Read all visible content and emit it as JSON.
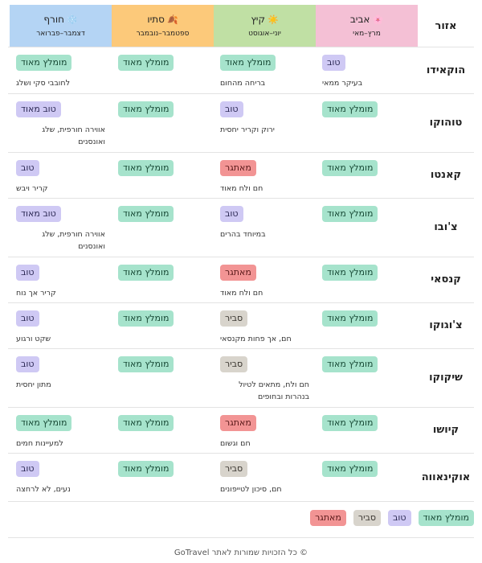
{
  "header": {
    "region_label": "אזור",
    "seasons": [
      {
        "key": "spring",
        "name": "אביב",
        "emoji": "🌸",
        "months": "מרץ–מאי"
      },
      {
        "key": "summer",
        "name": "קיץ",
        "emoji": "☀️",
        "months": "יוני–אוגוסט"
      },
      {
        "key": "autumn",
        "name": "סתיו",
        "emoji": "🍂",
        "months": "ספטמבר–נובמבר"
      },
      {
        "key": "winter",
        "name": "חורף",
        "emoji": "❄️",
        "months": "דצמבר–פברואר"
      }
    ]
  },
  "rows": [
    {
      "region": "הוקאידו",
      "cells": [
        {
          "badge": "טוב",
          "kind": "good",
          "note": "בעיקר ממאי"
        },
        {
          "badge": "מומלץ מאוד",
          "kind": "rec",
          "note": "בריחה מהחום"
        },
        {
          "badge": "מומלץ מאוד",
          "kind": "rec",
          "note": ""
        },
        {
          "badge": "מומלץ מאוד",
          "kind": "rec",
          "note": "לחובבי סקי ושלג"
        }
      ]
    },
    {
      "region": "טוהוקו",
      "cells": [
        {
          "badge": "מומלץ מאוד",
          "kind": "rec",
          "note": ""
        },
        {
          "badge": "טוב",
          "kind": "good",
          "note": "ירוק וקריר יחסית"
        },
        {
          "badge": "מומלץ מאוד",
          "kind": "rec",
          "note": ""
        },
        {
          "badge": "טוב מאוד",
          "kind": "good",
          "note": "אווירה חורפית, שלג ואונסנים"
        }
      ]
    },
    {
      "region": "קאנטו",
      "cells": [
        {
          "badge": "מומלץ מאוד",
          "kind": "rec",
          "note": ""
        },
        {
          "badge": "מאתגר",
          "kind": "hard",
          "note": "חם ולח מאוד"
        },
        {
          "badge": "מומלץ מאוד",
          "kind": "rec",
          "note": ""
        },
        {
          "badge": "טוב",
          "kind": "good",
          "note": "קריר ויבש"
        }
      ]
    },
    {
      "region": "צ'ובו",
      "cells": [
        {
          "badge": "מומלץ מאוד",
          "kind": "rec",
          "note": ""
        },
        {
          "badge": "טוב",
          "kind": "good",
          "note": "במיוחד בהרים"
        },
        {
          "badge": "מומלץ מאוד",
          "kind": "rec",
          "note": ""
        },
        {
          "badge": "טוב מאוד",
          "kind": "good",
          "note": "אווירה חורפית, שלג ואונסנים"
        }
      ]
    },
    {
      "region": "קנסאי",
      "cells": [
        {
          "badge": "מומלץ מאוד",
          "kind": "rec",
          "note": ""
        },
        {
          "badge": "מאתגר",
          "kind": "hard",
          "note": "חם ולח מאוד"
        },
        {
          "badge": "מומלץ מאוד",
          "kind": "rec",
          "note": ""
        },
        {
          "badge": "טוב",
          "kind": "good",
          "note": "קריר אך נוח"
        }
      ]
    },
    {
      "region": "צ'וגוקו",
      "cells": [
        {
          "badge": "מומלץ מאוד",
          "kind": "rec",
          "note": ""
        },
        {
          "badge": "סביר",
          "kind": "ok",
          "note": "חם, אך פחות מקנסאי"
        },
        {
          "badge": "מומלץ מאוד",
          "kind": "rec",
          "note": ""
        },
        {
          "badge": "טוב",
          "kind": "good",
          "note": "שקט ורגוע"
        }
      ]
    },
    {
      "region": "שיקוקו",
      "cells": [
        {
          "badge": "מומלץ מאוד",
          "kind": "rec",
          "note": ""
        },
        {
          "badge": "סביר",
          "kind": "ok",
          "note": "חם ולח, מתאים לטיול בנהרות ובחופים"
        },
        {
          "badge": "מומלץ מאוד",
          "kind": "rec",
          "note": ""
        },
        {
          "badge": "טוב",
          "kind": "good",
          "note": "מתון יחסית"
        }
      ]
    },
    {
      "region": "קיושו",
      "cells": [
        {
          "badge": "מומלץ מאוד",
          "kind": "rec",
          "note": ""
        },
        {
          "badge": "מאתגר",
          "kind": "hard",
          "note": "חם וגשום"
        },
        {
          "badge": "מומלץ מאוד",
          "kind": "rec",
          "note": ""
        },
        {
          "badge": "מומלץ מאוד",
          "kind": "rec",
          "note": "למעיינות חמים"
        }
      ]
    },
    {
      "region": "אוקינאווה",
      "cells": [
        {
          "badge": "מומלץ מאוד",
          "kind": "rec",
          "note": ""
        },
        {
          "badge": "סביר",
          "kind": "ok",
          "note": "חם, סיכון לטייפונים"
        },
        {
          "badge": "מומלץ מאוד",
          "kind": "rec",
          "note": ""
        },
        {
          "badge": "טוב",
          "kind": "good",
          "note": "נעים, לא לרחצה"
        }
      ]
    }
  ],
  "legend": [
    {
      "label": "מומלץ מאוד",
      "kind": "rec"
    },
    {
      "label": "טוב",
      "kind": "good"
    },
    {
      "label": "סביר",
      "kind": "ok"
    },
    {
      "label": "מאתגר",
      "kind": "hard"
    }
  ],
  "footer": "© כל הזכויות שמורות לאתר GoTravel",
  "colors": {
    "recommended": "#a6e3cc",
    "good": "#cfc9f4",
    "ok": "#d8d4cc",
    "hard": "#f29494",
    "spring": "#f4c0d5",
    "summer": "#c0e0a4",
    "autumn": "#fcc97a",
    "winter": "#b4d4f4"
  }
}
